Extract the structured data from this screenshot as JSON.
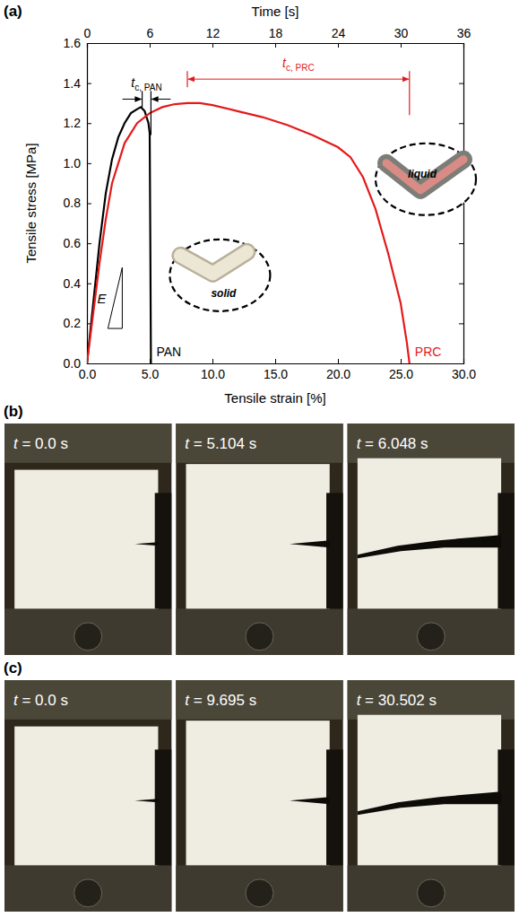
{
  "chart_data": {
    "type": "line",
    "panel_label": "(a)",
    "x_label": "Tensile strain [%]",
    "y_label": "Tensile stress [MPa]",
    "x2_label": "Time [s]",
    "xlim": [
      0,
      30
    ],
    "xticks": [
      {
        "value": 0,
        "label": "0.0"
      },
      {
        "value": 5,
        "label": "5.0"
      },
      {
        "value": 10,
        "label": "10.0"
      },
      {
        "value": 15,
        "label": "15.0"
      },
      {
        "value": 20,
        "label": "20.0"
      },
      {
        "value": 25,
        "label": "25.0"
      },
      {
        "value": 30,
        "label": "30.0"
      }
    ],
    "ylim": [
      0,
      1.6
    ],
    "yticks": [
      {
        "value": 0,
        "label": "0.0"
      },
      {
        "value": 0.2,
        "label": "0.2"
      },
      {
        "value": 0.4,
        "label": "0.4"
      },
      {
        "value": 0.6,
        "label": "0.6"
      },
      {
        "value": 0.8,
        "label": "0.8"
      },
      {
        "value": 1.0,
        "label": "1.0"
      },
      {
        "value": 1.2,
        "label": "1.2"
      },
      {
        "value": 1.4,
        "label": "1.4"
      },
      {
        "value": 1.6,
        "label": "1.6"
      }
    ],
    "x2lim": [
      0,
      36
    ],
    "x2ticks": [
      0,
      6,
      12,
      18,
      24,
      30,
      36
    ],
    "series": [
      {
        "name": "PAN",
        "color": "#000000",
        "x": [
          0,
          0.5,
          1.0,
          1.5,
          2.0,
          2.5,
          3.0,
          3.5,
          4.0,
          4.3,
          4.6,
          4.9,
          5.0,
          5.05,
          5.1
        ],
        "values": [
          0,
          0.3,
          0.6,
          0.85,
          1.02,
          1.13,
          1.2,
          1.25,
          1.27,
          1.28,
          1.26,
          1.2,
          1.15,
          0.6,
          0
        ]
      },
      {
        "name": "PRC",
        "color": "#e31a1c",
        "x": [
          0,
          0.5,
          1.0,
          1.5,
          2.0,
          3.0,
          4.0,
          5.0,
          6.0,
          7.0,
          8.0,
          9.0,
          10.0,
          12.0,
          14.0,
          16.0,
          18.0,
          20.0,
          21.0,
          22.0,
          23.0,
          24.0,
          25.0,
          25.5,
          25.7
        ],
        "values": [
          0,
          0.25,
          0.5,
          0.72,
          0.9,
          1.1,
          1.2,
          1.25,
          1.28,
          1.295,
          1.3,
          1.3,
          1.29,
          1.26,
          1.23,
          1.19,
          1.14,
          1.08,
          1.03,
          0.93,
          0.77,
          0.55,
          0.3,
          0.1,
          0
        ]
      }
    ],
    "annotations": [
      {
        "text": "t",
        "subscript": "c, PAN",
        "x": [
          4.4,
          5.1
        ],
        "y": 1.32,
        "color": "#000000"
      },
      {
        "text": "t",
        "subscript": "c, PRC",
        "x": [
          8.0,
          25.7
        ],
        "y": 1.42,
        "color": "#e31a1c"
      },
      {
        "text": "E",
        "x": 1.1,
        "y": 0.3
      },
      {
        "text": "solid",
        "x": 10.6,
        "y": 0.44
      },
      {
        "text": "liquid",
        "x": 27.0,
        "y": 0.92
      }
    ]
  },
  "photo_panels": [
    {
      "label": "(b)",
      "frames": [
        "t = 0.0 s",
        "t = 5.104 s",
        "t = 6.048 s"
      ]
    },
    {
      "label": "(c)",
      "frames": [
        "t = 0.0 s",
        "t = 9.695 s",
        "t = 30.502 s"
      ]
    }
  ]
}
